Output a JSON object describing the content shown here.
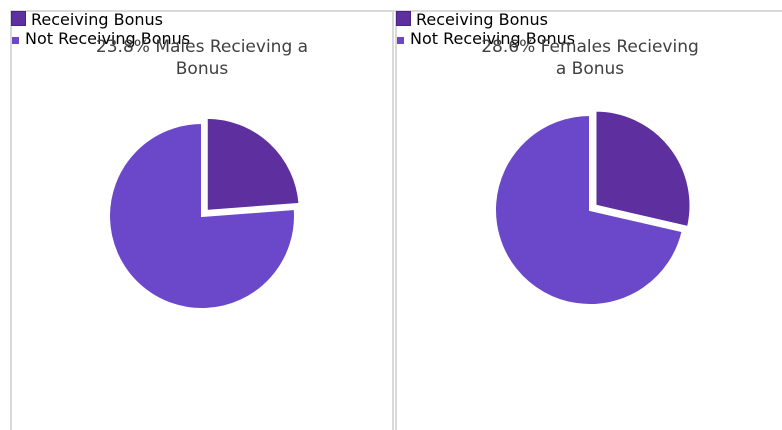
{
  "chart_data": [
    {
      "type": "pie",
      "title": "23.8% Males Recieving a Bonus",
      "categories": [
        "Receiving Bonus",
        "Not Receiving Bonus"
      ],
      "values": [
        23.8,
        76.2
      ],
      "colors": [
        "#5d2f9f",
        "#6a48c9"
      ],
      "legend": "bottom"
    },
    {
      "type": "pie",
      "title": "28.6% Females Recieving a Bonus",
      "categories": [
        "Receiving Bonus",
        "Not Receiving Bonus"
      ],
      "values": [
        28.6,
        71.4
      ],
      "colors": [
        "#5d2f9f",
        "#6a48c9"
      ],
      "legend": "bottom"
    }
  ]
}
